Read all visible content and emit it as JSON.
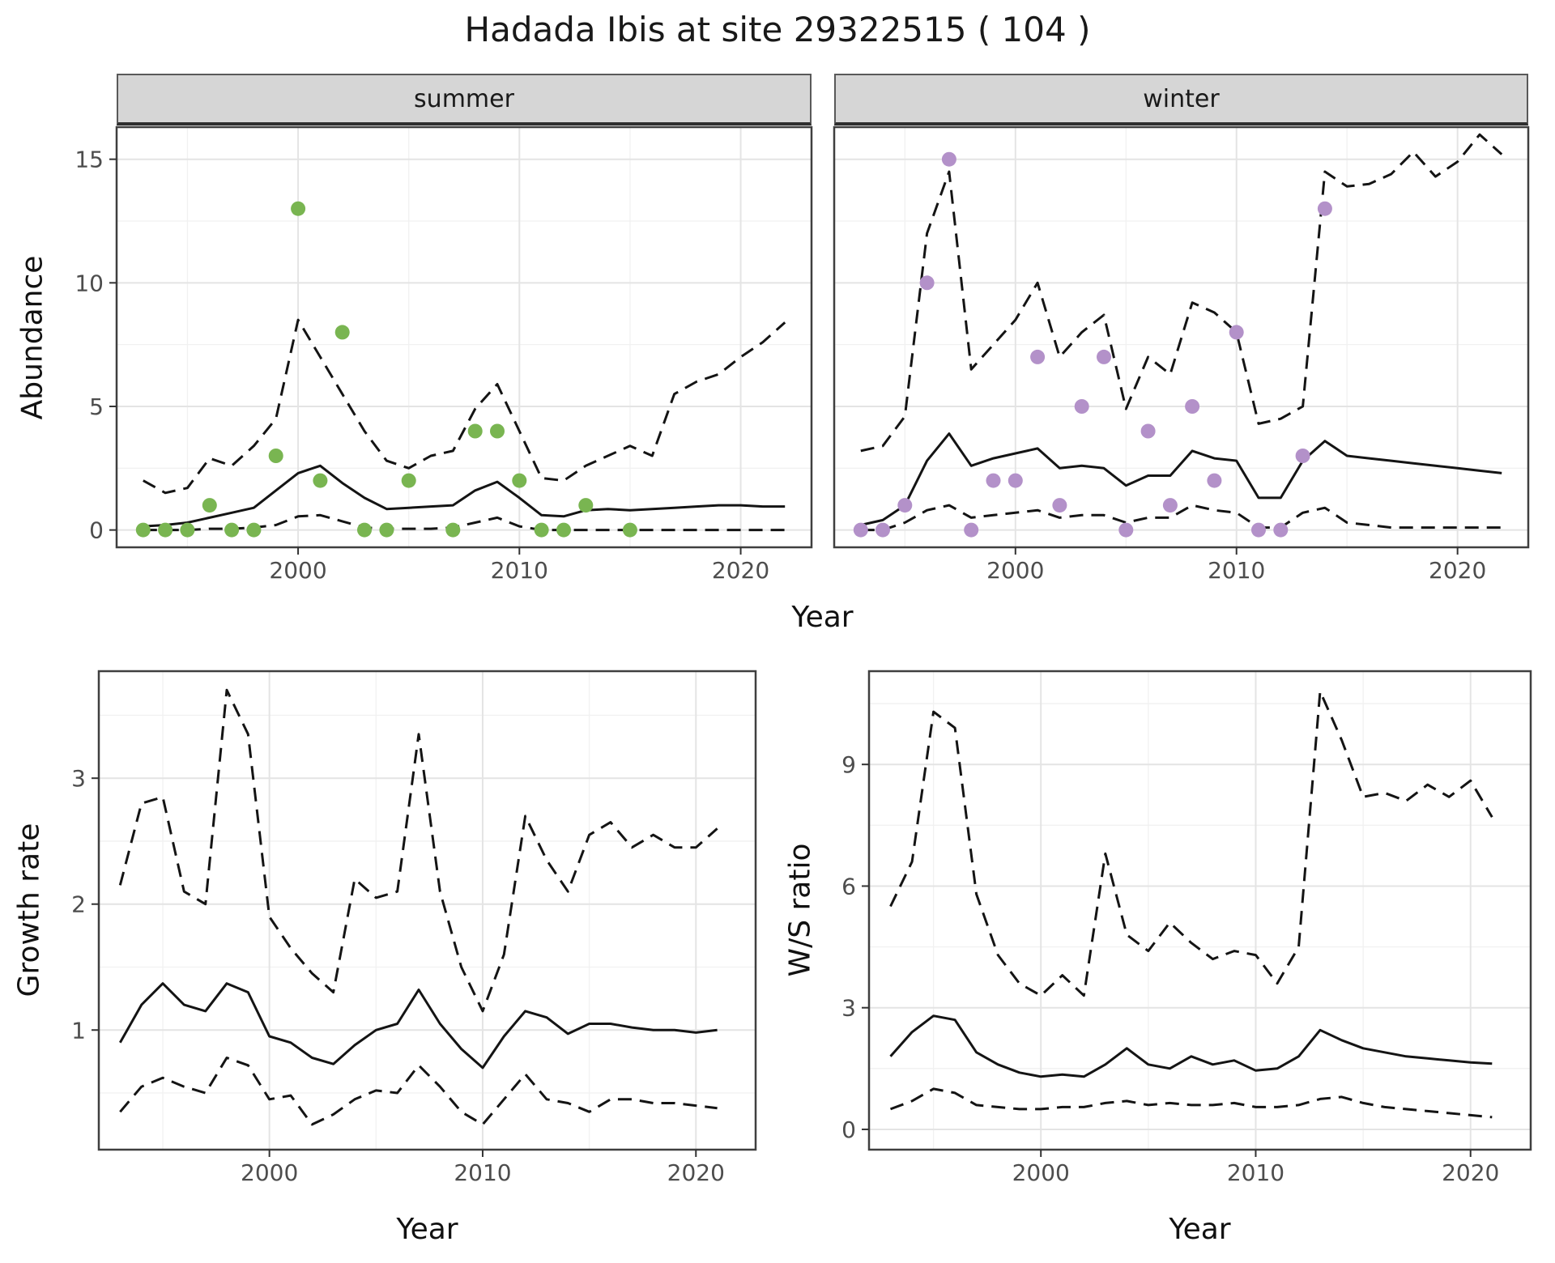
{
  "title": "Hadada Ibis at site 29322515 ( 104 )",
  "facets": {
    "summer": "summer",
    "winter": "winter"
  },
  "axes": {
    "abundance": "Abundance",
    "year": "Year",
    "growth": "Growth rate",
    "ws": "W/S ratio"
  },
  "colors": {
    "line": "#141414",
    "grid_major": "#e4e4e4",
    "grid_minor": "#f1f1f1",
    "tick_text": "#4d4d4d",
    "tick_mark": "#333333",
    "panel_border": "#3f3f3f",
    "strip_bg": "#d6d6d6",
    "summer_points": "#79b551",
    "winter_points": "#b391c9"
  },
  "chart_data": [
    {
      "id": "summer-abundance",
      "type": "line",
      "facet": "summer",
      "xlabel": "Year",
      "ylabel": "Abundance",
      "xlim": [
        1991.8,
        2023.2
      ],
      "ylim": [
        -0.7,
        16.3
      ],
      "x_ticks": [
        2000,
        2010,
        2020
      ],
      "y_ticks": [
        0,
        5,
        10,
        15
      ],
      "show_y_tick_labels": true,
      "x": [
        1993,
        1994,
        1995,
        1996,
        1997,
        1998,
        1999,
        2000,
        2001,
        2002,
        2003,
        2004,
        2005,
        2006,
        2007,
        2008,
        2009,
        2010,
        2011,
        2012,
        2013,
        2014,
        2015,
        2016,
        2017,
        2018,
        2019,
        2020,
        2021,
        2022
      ],
      "series": [
        {
          "name": "median-fit",
          "style": "solid",
          "values": [
            0.15,
            0.2,
            0.3,
            0.5,
            0.7,
            0.9,
            1.6,
            2.3,
            2.6,
            1.9,
            1.3,
            0.85,
            0.9,
            0.95,
            1.0,
            1.6,
            1.95,
            1.3,
            0.6,
            0.55,
            0.8,
            0.85,
            0.8,
            0.85,
            0.9,
            0.95,
            1.0,
            1.0,
            0.95,
            0.95
          ]
        },
        {
          "name": "upper-ci",
          "style": "dashed",
          "values": [
            2.0,
            1.5,
            1.7,
            2.9,
            2.6,
            3.4,
            4.5,
            8.5,
            7.0,
            5.5,
            4.0,
            2.8,
            2.5,
            3.0,
            3.2,
            4.9,
            5.9,
            4.0,
            2.1,
            2.0,
            2.6,
            3.0,
            3.4,
            3.0,
            5.5,
            6.0,
            6.3,
            7.0,
            7.6,
            8.4
          ]
        },
        {
          "name": "lower-ci",
          "style": "dashed",
          "values": [
            0,
            0,
            0,
            0.05,
            0.05,
            0.1,
            0.2,
            0.55,
            0.6,
            0.35,
            0.1,
            0.05,
            0.05,
            0.05,
            0.1,
            0.3,
            0.5,
            0.15,
            0,
            0,
            0,
            0,
            0,
            0,
            0,
            0,
            0,
            0,
            0,
            0
          ]
        }
      ],
      "points": {
        "name": "observed-counts-summer",
        "color": "#79b551",
        "x": [
          1993,
          1994,
          1995,
          1996,
          1997,
          1998,
          1999,
          2000,
          2001,
          2002,
          2003,
          2004,
          2005,
          2007,
          2008,
          2009,
          2010,
          2011,
          2012,
          2013,
          2015
        ],
        "values": [
          0,
          0,
          0,
          1,
          0,
          0,
          3,
          13,
          2,
          8,
          0,
          0,
          2,
          0,
          4,
          4,
          2,
          0,
          0,
          1,
          0
        ]
      }
    },
    {
      "id": "winter-abundance",
      "type": "line",
      "facet": "winter",
      "xlabel": "Year",
      "ylabel": "Abundance",
      "xlim": [
        1991.8,
        2023.2
      ],
      "ylim": [
        -0.7,
        16.3
      ],
      "x_ticks": [
        2000,
        2010,
        2020
      ],
      "y_ticks": [
        0,
        5,
        10,
        15
      ],
      "show_y_tick_labels": false,
      "x": [
        1993,
        1994,
        1995,
        1996,
        1997,
        1998,
        1999,
        2000,
        2001,
        2002,
        2003,
        2004,
        2005,
        2006,
        2007,
        2008,
        2009,
        2010,
        2011,
        2012,
        2013,
        2014,
        2015,
        2016,
        2017,
        2018,
        2019,
        2020,
        2021,
        2022
      ],
      "series": [
        {
          "name": "median-fit",
          "style": "solid",
          "values": [
            0.2,
            0.4,
            1.0,
            2.8,
            3.9,
            2.6,
            2.9,
            3.1,
            3.3,
            2.5,
            2.6,
            2.5,
            1.8,
            2.2,
            2.2,
            3.2,
            2.9,
            2.8,
            1.3,
            1.3,
            2.8,
            3.6,
            3.0,
            2.9,
            2.8,
            2.7,
            2.6,
            2.5,
            2.4,
            2.3
          ]
        },
        {
          "name": "upper-ci",
          "style": "dashed",
          "values": [
            3.2,
            3.4,
            4.6,
            12.0,
            14.5,
            6.5,
            7.5,
            8.5,
            10.0,
            7.0,
            8.0,
            8.7,
            4.9,
            7.0,
            6.3,
            9.2,
            8.8,
            8.0,
            4.3,
            4.5,
            5.0,
            14.5,
            13.9,
            14.0,
            14.4,
            15.3,
            14.3,
            14.9,
            16.0,
            15.2
          ]
        },
        {
          "name": "lower-ci",
          "style": "dashed",
          "values": [
            0,
            0,
            0.3,
            0.8,
            1.0,
            0.5,
            0.6,
            0.7,
            0.8,
            0.5,
            0.6,
            0.6,
            0.3,
            0.5,
            0.5,
            1.0,
            0.8,
            0.7,
            0.1,
            0.1,
            0.7,
            0.9,
            0.3,
            0.2,
            0.1,
            0.1,
            0.1,
            0.1,
            0.1,
            0.1
          ]
        }
      ],
      "points": {
        "name": "observed-counts-winter",
        "color": "#b391c9",
        "x": [
          1993,
          1994,
          1995,
          1996,
          1997,
          1998,
          1999,
          2000,
          2001,
          2002,
          2003,
          2004,
          2005,
          2006,
          2007,
          2008,
          2009,
          2010,
          2011,
          2012,
          2013,
          2014
        ],
        "values": [
          0,
          0,
          1,
          10,
          15,
          0,
          2,
          2,
          7,
          1,
          5,
          7,
          0,
          4,
          1,
          5,
          2,
          8,
          0,
          0,
          3,
          13
        ]
      }
    },
    {
      "id": "growth-rate",
      "type": "line",
      "xlabel": "Year",
      "ylabel": "Growth rate",
      "xlim": [
        1992,
        2022.8
      ],
      "ylim": [
        0.05,
        3.85
      ],
      "x_ticks": [
        2000,
        2010,
        2020
      ],
      "y_ticks": [
        1,
        2,
        3
      ],
      "show_y_tick_labels": true,
      "x": [
        1993,
        1994,
        1995,
        1996,
        1997,
        1998,
        1999,
        2000,
        2001,
        2002,
        2003,
        2004,
        2005,
        2006,
        2007,
        2008,
        2009,
        2010,
        2011,
        2012,
        2013,
        2014,
        2015,
        2016,
        2017,
        2018,
        2019,
        2020,
        2021
      ],
      "series": [
        {
          "name": "median-fit",
          "style": "solid",
          "values": [
            0.9,
            1.2,
            1.37,
            1.2,
            1.15,
            1.37,
            1.3,
            0.95,
            0.9,
            0.78,
            0.73,
            0.88,
            1.0,
            1.05,
            1.32,
            1.05,
            0.85,
            0.7,
            0.95,
            1.15,
            1.1,
            0.97,
            1.05,
            1.05,
            1.02,
            1.0,
            1.0,
            0.98,
            1.0
          ]
        },
        {
          "name": "upper-ci",
          "style": "dashed",
          "values": [
            2.15,
            2.8,
            2.85,
            2.1,
            2.0,
            3.7,
            3.35,
            1.9,
            1.65,
            1.45,
            1.3,
            2.2,
            2.05,
            2.1,
            3.35,
            2.1,
            1.5,
            1.15,
            1.6,
            2.7,
            2.35,
            2.1,
            2.55,
            2.65,
            2.45,
            2.55,
            2.45,
            2.45,
            2.6
          ]
        },
        {
          "name": "lower-ci",
          "style": "dashed",
          "values": [
            0.35,
            0.55,
            0.62,
            0.55,
            0.5,
            0.78,
            0.72,
            0.45,
            0.48,
            0.25,
            0.33,
            0.45,
            0.52,
            0.5,
            0.72,
            0.55,
            0.35,
            0.25,
            0.45,
            0.65,
            0.45,
            0.42,
            0.35,
            0.45,
            0.45,
            0.42,
            0.42,
            0.4,
            0.38
          ]
        }
      ]
    },
    {
      "id": "ws-ratio",
      "type": "line",
      "xlabel": "Year",
      "ylabel": "W/S ratio",
      "xlim": [
        1992,
        2022.8
      ],
      "ylim": [
        -0.5,
        11.3
      ],
      "x_ticks": [
        2000,
        2010,
        2020
      ],
      "y_ticks": [
        0,
        3,
        6,
        9
      ],
      "show_y_tick_labels": true,
      "x": [
        1993,
        1994,
        1995,
        1996,
        1997,
        1998,
        1999,
        2000,
        2001,
        2002,
        2003,
        2004,
        2005,
        2006,
        2007,
        2008,
        2009,
        2010,
        2011,
        2012,
        2013,
        2014,
        2015,
        2016,
        2017,
        2018,
        2019,
        2020,
        2021
      ],
      "series": [
        {
          "name": "median-fit",
          "style": "solid",
          "values": [
            1.8,
            2.4,
            2.8,
            2.7,
            1.9,
            1.6,
            1.4,
            1.3,
            1.35,
            1.3,
            1.6,
            2.0,
            1.6,
            1.5,
            1.8,
            1.6,
            1.7,
            1.45,
            1.5,
            1.8,
            2.45,
            2.2,
            2.0,
            1.9,
            1.8,
            1.75,
            1.7,
            1.65,
            1.62
          ]
        },
        {
          "name": "upper-ci",
          "style": "dashed",
          "values": [
            5.5,
            6.6,
            10.3,
            9.9,
            5.8,
            4.3,
            3.6,
            3.3,
            3.8,
            3.3,
            6.8,
            4.8,
            4.4,
            5.1,
            4.6,
            4.2,
            4.4,
            4.3,
            3.6,
            4.5,
            10.8,
            9.6,
            8.2,
            8.3,
            8.1,
            8.5,
            8.2,
            8.6,
            7.7
          ]
        },
        {
          "name": "lower-ci",
          "style": "dashed",
          "values": [
            0.5,
            0.7,
            1.0,
            0.9,
            0.6,
            0.55,
            0.5,
            0.5,
            0.55,
            0.55,
            0.65,
            0.7,
            0.6,
            0.65,
            0.6,
            0.6,
            0.65,
            0.55,
            0.55,
            0.6,
            0.75,
            0.8,
            0.65,
            0.55,
            0.5,
            0.45,
            0.4,
            0.35,
            0.3
          ]
        }
      ]
    }
  ]
}
